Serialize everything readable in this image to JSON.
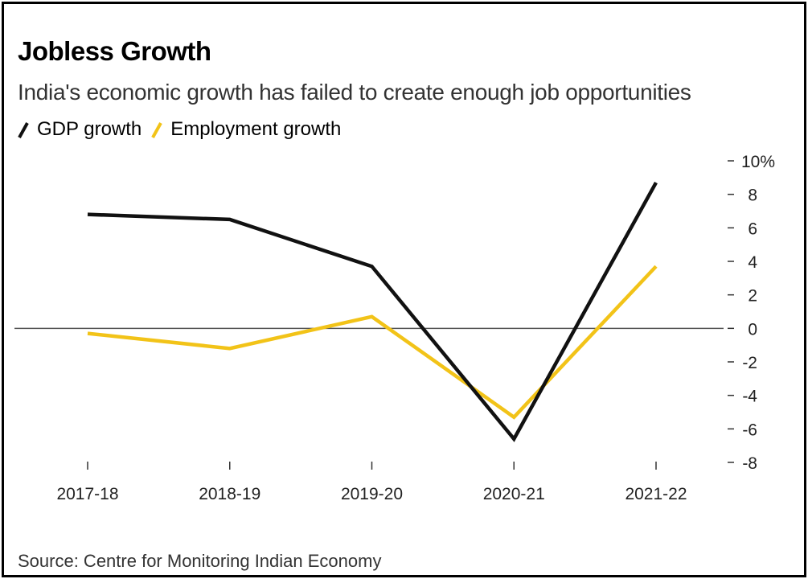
{
  "title": "Jobless Growth",
  "subtitle": "India's economic growth has failed to create enough job opportunities",
  "source": "Source: Centre for Monitoring Indian Economy",
  "colors": {
    "gdp": "#111111",
    "employment": "#f2c318",
    "zero_line": "#555555",
    "tick": "#333333"
  },
  "chart_data": {
    "type": "line",
    "categories": [
      "2017-18",
      "2018-19",
      "2019-20",
      "2020-21",
      "2021-22"
    ],
    "series": [
      {
        "name": "GDP growth",
        "values": [
          6.8,
          6.5,
          3.7,
          -6.6,
          8.7
        ]
      },
      {
        "name": "Employment growth",
        "values": [
          -0.3,
          -1.2,
          0.7,
          -5.3,
          3.7
        ]
      }
    ],
    "yticks": [
      "10%",
      "8",
      "6",
      "4",
      "2",
      "0",
      "-2",
      "-4",
      "-6",
      "-8"
    ],
    "ytick_values": [
      10,
      8,
      6,
      4,
      2,
      0,
      -2,
      -4,
      -6,
      -8
    ],
    "ylim": [
      -8,
      10
    ],
    "y_axis_position": "right",
    "grid": false,
    "zero_line": true,
    "legend_position": "top-left"
  }
}
